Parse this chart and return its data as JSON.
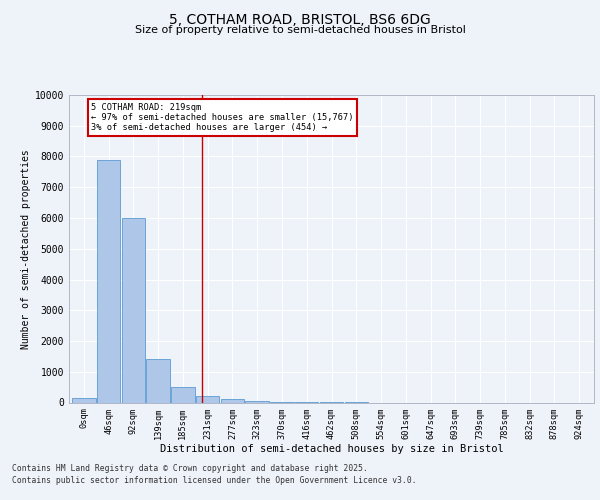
{
  "title1": "5, COTHAM ROAD, BRISTOL, BS6 6DG",
  "title2": "Size of property relative to semi-detached houses in Bristol",
  "xlabel": "Distribution of semi-detached houses by size in Bristol",
  "ylabel": "Number of semi-detached properties",
  "bar_labels": [
    "0sqm",
    "46sqm",
    "92sqm",
    "139sqm",
    "185sqm",
    "231sqm",
    "277sqm",
    "323sqm",
    "370sqm",
    "416sqm",
    "462sqm",
    "508sqm",
    "554sqm",
    "601sqm",
    "647sqm",
    "693sqm",
    "739sqm",
    "785sqm",
    "832sqm",
    "878sqm",
    "924sqm"
  ],
  "bar_values": [
    150,
    7900,
    6000,
    1400,
    490,
    220,
    130,
    60,
    15,
    5,
    2,
    1,
    0,
    0,
    0,
    0,
    0,
    0,
    0,
    0,
    0
  ],
  "bar_color": "#aec6e8",
  "bar_edge_color": "#5b9bd5",
  "property_line_x": 4.78,
  "annotation_title": "5 COTHAM ROAD: 219sqm",
  "annotation_line1": "← 97% of semi-detached houses are smaller (15,767)",
  "annotation_line2": "3% of semi-detached houses are larger (454) →",
  "annotation_box_color": "#ffffff",
  "annotation_box_edge_color": "#cc0000",
  "vline_color": "#cc0000",
  "ylim": [
    0,
    10000
  ],
  "yticks": [
    0,
    1000,
    2000,
    3000,
    4000,
    5000,
    6000,
    7000,
    8000,
    9000,
    10000
  ],
  "background_color": "#eef2f9",
  "plot_bg_color": "#eef2f9",
  "grid_color": "#ffffff",
  "footer1": "Contains HM Land Registry data © Crown copyright and database right 2025.",
  "footer2": "Contains public sector information licensed under the Open Government Licence v3.0."
}
